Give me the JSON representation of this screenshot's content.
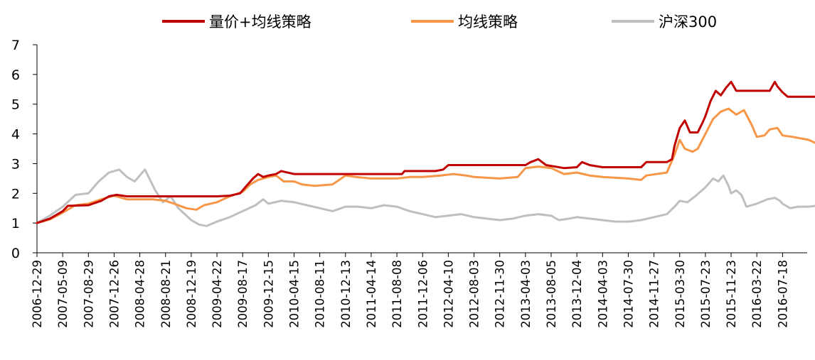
{
  "chart_data": {
    "type": "line",
    "title": "",
    "xlabel": "",
    "ylabel": "",
    "ylim": [
      0,
      7
    ],
    "yticks": [
      0,
      1,
      2,
      3,
      4,
      5,
      6,
      7
    ],
    "grid": false,
    "legend_position": "top",
    "x_tick_labels": [
      "2006-12-29",
      "2007-05-09",
      "2007-08-29",
      "2007-12-26",
      "2008-04-28",
      "2008-08-21",
      "2008-12-19",
      "2009-04-22",
      "2009-08-17",
      "2009-12-15",
      "2010-04-15",
      "2010-08-11",
      "2010-12-13",
      "2011-04-14",
      "2011-08-08",
      "2011-12-06",
      "2012-04-10",
      "2012-08-03",
      "2012-11-30",
      "2013-04-03",
      "2013-08-05",
      "2013-12-04",
      "2014-04-03",
      "2014-07-30",
      "2014-11-27",
      "2015-03-30",
      "2015-07-23",
      "2015-11-23",
      "2016-03-22",
      "2016-07-18"
    ],
    "series": [
      {
        "name": "量价+均线策略",
        "color": "#c00000",
        "points": [
          [
            0,
            1.0
          ],
          [
            0.5,
            1.15
          ],
          [
            1.0,
            1.4
          ],
          [
            1.2,
            1.58
          ],
          [
            2.0,
            1.6
          ],
          [
            2.5,
            1.75
          ],
          [
            2.8,
            1.9
          ],
          [
            3.1,
            1.95
          ],
          [
            3.5,
            1.9
          ],
          [
            5.0,
            1.9
          ],
          [
            7.0,
            1.9
          ],
          [
            7.5,
            1.92
          ],
          [
            7.9,
            2.0
          ],
          [
            8.1,
            2.2
          ],
          [
            8.4,
            2.5
          ],
          [
            8.6,
            2.65
          ],
          [
            8.8,
            2.55
          ],
          [
            9.0,
            2.6
          ],
          [
            9.3,
            2.65
          ],
          [
            9.5,
            2.75
          ],
          [
            10.0,
            2.65
          ],
          [
            12.0,
            2.65
          ],
          [
            13.0,
            2.65
          ],
          [
            14.2,
            2.65
          ],
          [
            14.3,
            2.75
          ],
          [
            15.5,
            2.75
          ],
          [
            15.8,
            2.8
          ],
          [
            16.0,
            2.95
          ],
          [
            17.0,
            2.95
          ],
          [
            19.0,
            2.95
          ],
          [
            19.2,
            3.05
          ],
          [
            19.5,
            3.15
          ],
          [
            19.8,
            2.95
          ],
          [
            20.5,
            2.85
          ],
          [
            21.0,
            2.88
          ],
          [
            21.2,
            3.05
          ],
          [
            21.5,
            2.95
          ],
          [
            22.0,
            2.88
          ],
          [
            23.0,
            2.88
          ],
          [
            23.5,
            2.88
          ],
          [
            23.7,
            3.05
          ],
          [
            24.5,
            3.05
          ],
          [
            24.7,
            3.15
          ],
          [
            24.8,
            3.6
          ],
          [
            25.0,
            4.2
          ],
          [
            25.2,
            4.45
          ],
          [
            25.4,
            4.05
          ],
          [
            25.7,
            4.05
          ],
          [
            25.9,
            4.4
          ],
          [
            26.0,
            4.6
          ],
          [
            26.2,
            5.1
          ],
          [
            26.4,
            5.45
          ],
          [
            26.6,
            5.3
          ],
          [
            26.8,
            5.55
          ],
          [
            27.0,
            5.75
          ],
          [
            27.2,
            5.45
          ],
          [
            28.0,
            5.45
          ],
          [
            28.5,
            5.45
          ],
          [
            28.7,
            5.75
          ],
          [
            28.8,
            5.6
          ],
          [
            29.0,
            5.4
          ],
          [
            29.2,
            5.25
          ],
          [
            30.0,
            5.25
          ],
          [
            30.9,
            5.25
          ]
        ]
      },
      {
        "name": "均线策略",
        "color": "#f79646",
        "points": [
          [
            0,
            1.0
          ],
          [
            0.5,
            1.12
          ],
          [
            1.0,
            1.35
          ],
          [
            1.5,
            1.6
          ],
          [
            2.0,
            1.65
          ],
          [
            2.5,
            1.8
          ],
          [
            3.0,
            1.92
          ],
          [
            3.5,
            1.8
          ],
          [
            4.0,
            1.8
          ],
          [
            4.5,
            1.8
          ],
          [
            5.0,
            1.75
          ],
          [
            5.5,
            1.6
          ],
          [
            5.8,
            1.5
          ],
          [
            6.2,
            1.45
          ],
          [
            6.5,
            1.6
          ],
          [
            7.0,
            1.7
          ],
          [
            7.5,
            1.9
          ],
          [
            8.0,
            2.05
          ],
          [
            8.3,
            2.3
          ],
          [
            8.6,
            2.45
          ],
          [
            9.0,
            2.55
          ],
          [
            9.3,
            2.6
          ],
          [
            9.6,
            2.4
          ],
          [
            10.0,
            2.4
          ],
          [
            10.3,
            2.3
          ],
          [
            10.8,
            2.25
          ],
          [
            11.5,
            2.3
          ],
          [
            12.0,
            2.6
          ],
          [
            12.4,
            2.55
          ],
          [
            13.0,
            2.5
          ],
          [
            14.0,
            2.5
          ],
          [
            14.5,
            2.55
          ],
          [
            15.0,
            2.55
          ],
          [
            15.7,
            2.6
          ],
          [
            16.2,
            2.65
          ],
          [
            16.7,
            2.6
          ],
          [
            17.0,
            2.55
          ],
          [
            18.0,
            2.5
          ],
          [
            18.7,
            2.55
          ],
          [
            19.0,
            2.85
          ],
          [
            19.5,
            2.9
          ],
          [
            20.0,
            2.85
          ],
          [
            20.5,
            2.65
          ],
          [
            21.0,
            2.7
          ],
          [
            21.5,
            2.6
          ],
          [
            22.0,
            2.55
          ],
          [
            23.0,
            2.5
          ],
          [
            23.5,
            2.45
          ],
          [
            23.7,
            2.6
          ],
          [
            24.5,
            2.7
          ],
          [
            24.8,
            3.3
          ],
          [
            25.0,
            3.8
          ],
          [
            25.2,
            3.5
          ],
          [
            25.5,
            3.4
          ],
          [
            25.7,
            3.5
          ],
          [
            26.0,
            4.0
          ],
          [
            26.3,
            4.5
          ],
          [
            26.6,
            4.75
          ],
          [
            26.9,
            4.85
          ],
          [
            27.2,
            4.65
          ],
          [
            27.5,
            4.8
          ],
          [
            27.8,
            4.3
          ],
          [
            28.0,
            3.9
          ],
          [
            28.3,
            3.95
          ],
          [
            28.5,
            4.15
          ],
          [
            28.8,
            4.2
          ],
          [
            29.0,
            3.95
          ],
          [
            29.4,
            3.9
          ],
          [
            30.0,
            3.8
          ],
          [
            30.4,
            3.65
          ],
          [
            30.7,
            3.6
          ],
          [
            30.9,
            3.55
          ]
        ]
      },
      {
        "name": "沪深300",
        "color": "#bfbfbf",
        "points": [
          [
            0,
            1.0
          ],
          [
            0.5,
            1.25
          ],
          [
            1.0,
            1.55
          ],
          [
            1.5,
            1.95
          ],
          [
            2.0,
            2.0
          ],
          [
            2.4,
            2.4
          ],
          [
            2.8,
            2.7
          ],
          [
            3.2,
            2.8
          ],
          [
            3.5,
            2.55
          ],
          [
            3.8,
            2.4
          ],
          [
            4.2,
            2.8
          ],
          [
            4.6,
            2.1
          ],
          [
            4.9,
            1.7
          ],
          [
            5.2,
            1.9
          ],
          [
            5.5,
            1.5
          ],
          [
            6.0,
            1.1
          ],
          [
            6.3,
            0.95
          ],
          [
            6.6,
            0.9
          ],
          [
            7.0,
            1.05
          ],
          [
            7.5,
            1.2
          ],
          [
            8.0,
            1.4
          ],
          [
            8.5,
            1.6
          ],
          [
            8.8,
            1.8
          ],
          [
            9.0,
            1.65
          ],
          [
            9.5,
            1.75
          ],
          [
            10.0,
            1.7
          ],
          [
            10.5,
            1.6
          ],
          [
            11.0,
            1.5
          ],
          [
            11.5,
            1.4
          ],
          [
            12.0,
            1.55
          ],
          [
            12.5,
            1.55
          ],
          [
            13.0,
            1.5
          ],
          [
            13.5,
            1.6
          ],
          [
            14.0,
            1.55
          ],
          [
            14.5,
            1.4
          ],
          [
            15.0,
            1.3
          ],
          [
            15.5,
            1.2
          ],
          [
            16.0,
            1.25
          ],
          [
            16.5,
            1.3
          ],
          [
            17.0,
            1.2
          ],
          [
            17.5,
            1.15
          ],
          [
            18.0,
            1.1
          ],
          [
            18.5,
            1.15
          ],
          [
            19.0,
            1.25
          ],
          [
            19.5,
            1.3
          ],
          [
            20.0,
            1.25
          ],
          [
            20.3,
            1.1
          ],
          [
            20.7,
            1.15
          ],
          [
            21.0,
            1.2
          ],
          [
            21.5,
            1.15
          ],
          [
            22.0,
            1.1
          ],
          [
            22.5,
            1.05
          ],
          [
            23.0,
            1.05
          ],
          [
            23.5,
            1.1
          ],
          [
            24.0,
            1.2
          ],
          [
            24.5,
            1.3
          ],
          [
            24.8,
            1.55
          ],
          [
            25.0,
            1.75
          ],
          [
            25.3,
            1.7
          ],
          [
            25.6,
            1.9
          ],
          [
            26.0,
            2.2
          ],
          [
            26.3,
            2.5
          ],
          [
            26.5,
            2.4
          ],
          [
            26.7,
            2.6
          ],
          [
            26.9,
            2.25
          ],
          [
            27.0,
            2.0
          ],
          [
            27.2,
            2.1
          ],
          [
            27.4,
            1.95
          ],
          [
            27.6,
            1.55
          ],
          [
            28.0,
            1.65
          ],
          [
            28.4,
            1.8
          ],
          [
            28.7,
            1.85
          ],
          [
            28.9,
            1.75
          ],
          [
            29.0,
            1.65
          ],
          [
            29.3,
            1.5
          ],
          [
            29.6,
            1.55
          ],
          [
            30.0,
            1.55
          ],
          [
            30.5,
            1.6
          ],
          [
            30.9,
            1.6
          ]
        ]
      }
    ]
  }
}
